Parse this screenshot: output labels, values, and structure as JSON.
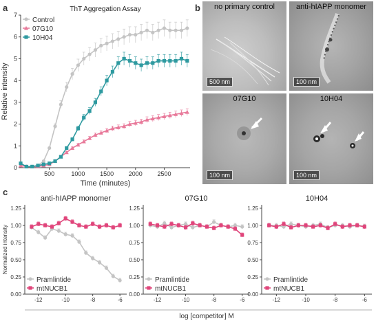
{
  "panels": {
    "a": "a",
    "b": "b",
    "c": "c"
  },
  "chart_data": [
    {
      "type": "line",
      "title": "ThT Aggregation Assay",
      "xlabel": "Time (minutes)",
      "ylabel": "Relative intensity",
      "xlim": [
        0,
        2950
      ],
      "ylim": [
        0,
        7
      ],
      "xticks": [
        500,
        1000,
        1500,
        2000,
        2500
      ],
      "yticks": [
        0,
        1,
        2,
        3,
        4,
        5,
        6,
        7
      ],
      "legend": "top-left",
      "series": [
        {
          "name": "Control",
          "color": "#c4c4c4",
          "marker": "circle",
          "x": [
            0,
            100,
            200,
            300,
            400,
            500,
            600,
            700,
            800,
            900,
            1000,
            1100,
            1200,
            1300,
            1400,
            1500,
            1600,
            1700,
            1800,
            1900,
            2000,
            2100,
            2200,
            2300,
            2400,
            2500,
            2600,
            2700,
            2800,
            2900
          ],
          "y": [
            0.2,
            0.05,
            0.05,
            0.1,
            0.3,
            0.9,
            1.9,
            2.9,
            3.7,
            4.3,
            4.7,
            5.0,
            5.2,
            5.4,
            5.6,
            5.7,
            5.8,
            5.9,
            6.0,
            6.1,
            6.1,
            6.2,
            6.3,
            6.2,
            6.3,
            6.4,
            6.3,
            6.3,
            6.3,
            6.4
          ]
        },
        {
          "name": "07G10",
          "color": "#e8799a",
          "marker": "triangle",
          "x": [
            0,
            100,
            200,
            300,
            400,
            500,
            600,
            700,
            800,
            900,
            1000,
            1100,
            1200,
            1300,
            1400,
            1500,
            1600,
            1700,
            1800,
            1900,
            2000,
            2100,
            2200,
            2300,
            2400,
            2500,
            2600,
            2700,
            2800,
            2900
          ],
          "y": [
            0.1,
            0.05,
            0.05,
            0.05,
            0.1,
            0.15,
            0.3,
            0.5,
            0.7,
            0.9,
            1.05,
            1.2,
            1.35,
            1.5,
            1.6,
            1.7,
            1.8,
            1.85,
            1.9,
            2.0,
            2.05,
            2.1,
            2.2,
            2.25,
            2.3,
            2.35,
            2.4,
            2.45,
            2.5,
            2.55
          ]
        },
        {
          "name": "10H04",
          "color": "#2e9aa0",
          "marker": "square",
          "x": [
            0,
            100,
            200,
            300,
            400,
            500,
            600,
            700,
            800,
            900,
            1000,
            1100,
            1200,
            1300,
            1400,
            1500,
            1600,
            1700,
            1800,
            1900,
            2000,
            2100,
            2200,
            2300,
            2400,
            2500,
            2600,
            2700,
            2800,
            2900
          ],
          "y": [
            0.2,
            0.05,
            0.05,
            0.1,
            0.15,
            0.2,
            0.3,
            0.5,
            0.9,
            1.3,
            1.8,
            2.3,
            2.6,
            3.0,
            3.5,
            4.0,
            4.4,
            4.8,
            5.0,
            4.9,
            4.8,
            4.7,
            4.8,
            4.8,
            4.9,
            4.9,
            4.9,
            4.9,
            5.0,
            4.9
          ]
        }
      ]
    },
    {
      "type": "line",
      "title": "anti-hIAPP monomer",
      "xlabel": "",
      "ylabel": "Normalized intensity",
      "xlim": [
        -13,
        -5.5
      ],
      "ylim": [
        0,
        1.3
      ],
      "xticks": [
        -12,
        -10,
        -8,
        -6
      ],
      "yticks": [
        0,
        0.25,
        0.5,
        0.75,
        1.0,
        1.25
      ],
      "legend": "bottom-left",
      "series": [
        {
          "name": "Pramlintide",
          "color": "#c4c4c4",
          "marker": "circle",
          "x": [
            -12.5,
            -12,
            -11.5,
            -11,
            -10.5,
            -10,
            -9.5,
            -9,
            -8.5,
            -8,
            -7.5,
            -7,
            -6.5,
            -6
          ],
          "y": [
            0.97,
            0.9,
            0.82,
            0.95,
            0.92,
            0.87,
            0.85,
            0.76,
            0.6,
            0.52,
            0.46,
            0.38,
            0.26,
            0.2
          ]
        },
        {
          "name": "mtNUCB1",
          "color": "#e0457b",
          "marker": "square",
          "x": [
            -12.5,
            -12,
            -11.5,
            -11,
            -10.5,
            -10,
            -9.5,
            -9,
            -8.5,
            -8,
            -7.5,
            -7,
            -6.5,
            -6
          ],
          "y": [
            0.98,
            1.02,
            1.0,
            0.98,
            1.03,
            1.1,
            1.05,
            1.0,
            0.98,
            1.02,
            0.98,
            1.0,
            0.97,
            1.0
          ]
        }
      ]
    },
    {
      "type": "line",
      "title": "07G10",
      "xlabel": "",
      "ylabel": "",
      "xlim": [
        -13,
        -5.5
      ],
      "ylim": [
        0,
        1.3
      ],
      "xticks": [
        -12,
        -10,
        -8,
        -6
      ],
      "yticks": [
        0,
        0.25,
        0.5,
        0.75,
        1.0,
        1.25
      ],
      "legend": "bottom-left",
      "series": [
        {
          "name": "Pramlintide",
          "color": "#c4c4c4",
          "marker": "circle",
          "x": [
            -12.5,
            -12,
            -11.5,
            -11,
            -10.5,
            -10,
            -9.5,
            -9,
            -8.5,
            -8,
            -7.5,
            -7,
            -6.5,
            -6
          ],
          "y": [
            1.0,
            0.98,
            1.03,
            0.97,
            1.0,
            1.02,
            0.97,
            1.0,
            0.98,
            1.05,
            1.0,
            0.98,
            1.0,
            0.98
          ]
        },
        {
          "name": "mtNUCB1",
          "color": "#e0457b",
          "marker": "square",
          "x": [
            -12.5,
            -12,
            -11.5,
            -11,
            -10.5,
            -10,
            -9.5,
            -9,
            -8.5,
            -8,
            -7.5,
            -7,
            -6.5,
            -6
          ],
          "y": [
            1.02,
            1.0,
            0.98,
            1.02,
            1.0,
            0.97,
            1.03,
            1.0,
            0.98,
            0.96,
            1.0,
            0.98,
            0.95,
            0.86
          ]
        }
      ]
    },
    {
      "type": "line",
      "title": "10H04",
      "xlabel": "",
      "ylabel": "",
      "xlim": [
        -13,
        -5.5
      ],
      "ylim": [
        0,
        1.3
      ],
      "xticks": [
        -12,
        -10,
        -8,
        -6
      ],
      "yticks": [
        0,
        0.25,
        0.5,
        0.75,
        1.0,
        1.25
      ],
      "legend": "bottom-left",
      "series": [
        {
          "name": "Pramlintide",
          "color": "#c4c4c4",
          "marker": "circle",
          "x": [
            -12.5,
            -12,
            -11.5,
            -11,
            -10.5,
            -10,
            -9.5,
            -9,
            -8.5,
            -8,
            -7.5,
            -7,
            -6.5,
            -6
          ],
          "y": [
            1.0,
            1.0,
            0.98,
            1.02,
            1.0,
            0.98,
            1.0,
            1.02,
            0.97,
            1.0,
            1.0,
            0.98,
            1.0,
            0.99
          ]
        },
        {
          "name": "mtNUCB1",
          "color": "#e0457b",
          "marker": "square",
          "x": [
            -12.5,
            -12,
            -11.5,
            -11,
            -10.5,
            -10,
            -9.5,
            -9,
            -8.5,
            -8,
            -7.5,
            -7,
            -6.5,
            -6
          ],
          "y": [
            1.0,
            0.98,
            1.02,
            0.97,
            1.0,
            1.0,
            0.98,
            1.0,
            0.96,
            1.02,
            0.98,
            1.0,
            1.0,
            0.98
          ]
        }
      ]
    }
  ],
  "shared_xlabel": "log [competitor] M",
  "micrographs": [
    {
      "title": "no primary control",
      "scale": "500 nm"
    },
    {
      "title": "anti-hIAPP monomer",
      "scale": "100 nm"
    },
    {
      "title": "07G10",
      "scale": "100 nm"
    },
    {
      "title": "10H04",
      "scale": "100 nm"
    }
  ]
}
